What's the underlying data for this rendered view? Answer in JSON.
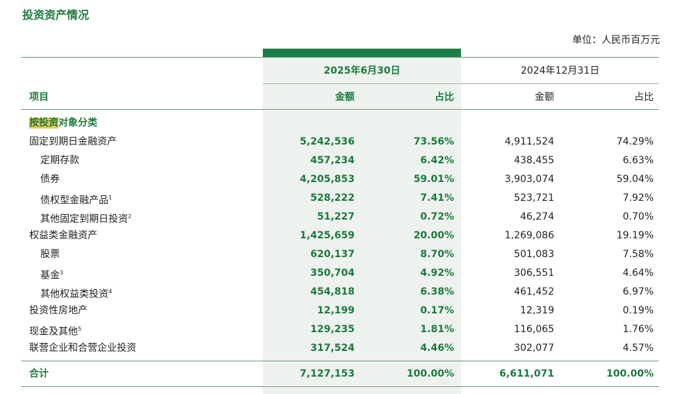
{
  "header": {
    "title": "投资资产情况",
    "unit": "单位：人民币百万元"
  },
  "table": {
    "periods": [
      "2025年6月30日",
      "2024年12月31日"
    ],
    "columns": [
      "项目",
      "金额",
      "占比",
      "金额",
      "占比"
    ],
    "section": {
      "highlighted": "按投资",
      "text": "对象分类"
    },
    "rows": [
      {
        "label": "固定到期日金融资产",
        "values": [
          "5,242,536",
          "73.56%",
          "4,911,524",
          "74.29%"
        ],
        "children": [
          {
            "label": "定期存款",
            "values": [
              "457,234",
              "6.42%",
              "438,455",
              "6.63%"
            ]
          },
          {
            "label": "债券",
            "values": [
              "4,205,853",
              "59.01%",
              "3,903,074",
              "59.04%"
            ]
          },
          {
            "label": "债权型金融产品",
            "note": "1",
            "values": [
              "528,222",
              "7.41%",
              "523,721",
              "7.92%"
            ]
          },
          {
            "label": "其他固定到期日投资",
            "note": "2",
            "values": [
              "51,227",
              "0.72%",
              "46,274",
              "0.70%"
            ]
          }
        ]
      },
      {
        "label": "权益类金融资产",
        "values": [
          "1,425,659",
          "20.00%",
          "1,269,086",
          "19.19%"
        ],
        "children": [
          {
            "label": "股票",
            "values": [
              "620,137",
              "8.70%",
              "501,083",
              "7.58%"
            ]
          },
          {
            "label": "基金",
            "note": "3",
            "values": [
              "350,704",
              "4.92%",
              "306,551",
              "4.64%"
            ]
          },
          {
            "label": "其他权益类投资",
            "note": "4",
            "values": [
              "454,818",
              "6.38%",
              "461,452",
              "6.97%"
            ]
          }
        ]
      },
      {
        "label": "投资性房地产",
        "values": [
          "12,199",
          "0.17%",
          "12,319",
          "0.19%"
        ]
      },
      {
        "label": "现金及其他",
        "note": "5",
        "values": [
          "129,235",
          "1.81%",
          "116,065",
          "1.76%"
        ]
      },
      {
        "label": "联营企业和合营企业投资",
        "values": [
          "317,524",
          "4.46%",
          "302,077",
          "4.57%"
        ]
      }
    ],
    "total": {
      "label": "合计",
      "values": [
        "7,127,153",
        "100.00%",
        "6,611,071",
        "100.00%"
      ]
    }
  }
}
